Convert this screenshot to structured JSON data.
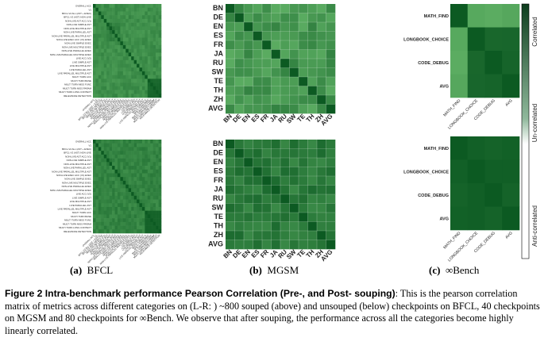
{
  "panels": {
    "bfcl": {
      "subcaption_letter": "(a)",
      "subcaption_name": "BFCL",
      "row_labels": [
        "OVERALL ACC",
        "V1",
        "BFCL-V2 ALL (AST + EXEC)",
        "BFCL-V2 (AST) NON-LIVE",
        "NON-LIVE AST ACC (V1)",
        "NON-LIVE SIMPLE AST",
        "NON-LIVE MULTIPLE AST",
        "NON-LIVE PARALLEL AST",
        "NON-LIVE PARALLEL MULTIPLE AST",
        "NON-LIVE EXEC ACC (V1) EXEC",
        "NON-LIVE SIMPLE EXEC",
        "NON-LIVE MULTIPLE EXEC",
        "NON-LIVE PARALLEL EXEC",
        "NON-LIVE PARALLEL MULTIPLE EXEC",
        "LIVE ACC (V2)",
        "LIVE SIMPLE AST",
        "LIVE MULTIPLE AST",
        "LIVE PARALLEL AST",
        "LIVE PARALLEL MULTIPLE AST",
        "MULTI TURN ACC",
        "MULTI TURN BASE",
        "MULTI TURN MISS FUNC",
        "MULTI TURN MISS PARAM",
        "MULTI TURN LONG CONTEXT",
        "RELEVANCE DETECTION"
      ]
    },
    "mgsm": {
      "subcaption_letter": "(b)",
      "subcaption_name": "MGSM",
      "labels": [
        "BN",
        "DE",
        "EN",
        "ES",
        "FR",
        "JA",
        "RU",
        "SW",
        "TE",
        "TH",
        "ZH",
        "AVG"
      ]
    },
    "bench": {
      "subcaption_letter": "(c)",
      "subcaption_name": "∞Bench",
      "labels": [
        "MATH_FIND",
        "LONGBOOK_CHOICE",
        "CODE_DEBUG",
        "AVG"
      ],
      "colorbar_labels": [
        "Correlated",
        "Un-correlated",
        "Anti-correlated"
      ]
    }
  },
  "heatmap_colors": {
    "dark": "#0c5a22",
    "light": "#7ccf7c",
    "mid": "#2f9a43"
  },
  "caption": {
    "lead": "Figure 2  Intra-benchmark performance Pearson Correlation (Pre-, and Post- souping)",
    "body": ": This is the pearson correlation matrix of metrics across different categories on (L-R: ) ~800 souped (above) and unsouped (below) checkpoints on BFCL, 40 checkpoints on MGSM and 80 checkpoints for ∞Bench. We observe that after souping, the performance across all the categories become highly linearly correlated."
  }
}
